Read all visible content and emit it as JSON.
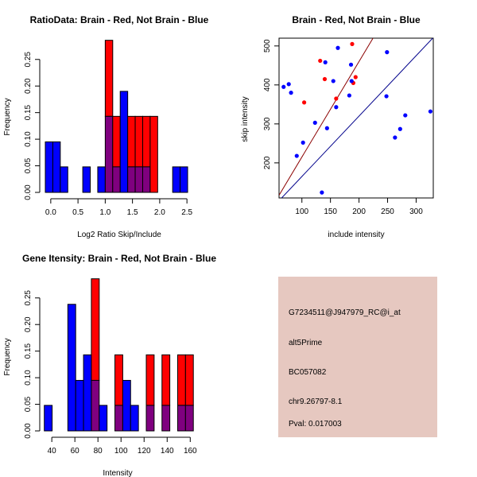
{
  "colors": {
    "red": "#ff0000",
    "blue": "#0000ff",
    "overlap": "#7f007f",
    "panel_bg": "#e6c8c0",
    "pval": "#aa0000",
    "dark_red": "#8b0000",
    "dark_blue": "#00008b"
  },
  "chart_data": [
    {
      "type": "bar",
      "subtype": "histogram-overlay",
      "title": "RatioData: Brain - Red, Not Brain - Blue",
      "xlabel": "Log2 Ratio Skip/Include",
      "ylabel": "Frequency",
      "xlim": [
        -0.1,
        2.6
      ],
      "ylim": [
        0,
        0.29
      ],
      "xticks": [
        0.0,
        0.5,
        1.0,
        1.5,
        2.0,
        2.5
      ],
      "xtick_labels": [
        "0.0",
        "0.5",
        "1.0",
        "1.5",
        "2.0",
        "2.5"
      ],
      "yticks": [
        0.0,
        0.05,
        0.1,
        0.15,
        0.2,
        0.25
      ],
      "ytick_labels": [
        "0.00",
        "0.05",
        "0.10",
        "0.15",
        "0.20",
        "0.25"
      ],
      "bin_start": -0.1,
      "bin_width": 0.1375,
      "series": [
        {
          "name": "Not Brain",
          "color": "blue",
          "values": [
            0.095,
            0.095,
            0.048,
            0,
            0,
            0.048,
            0,
            0.048,
            0.143,
            0.048,
            0.19,
            0.048,
            0.048,
            0.048,
            0,
            0,
            0,
            0.048,
            0.048
          ]
        },
        {
          "name": "Brain",
          "color": "red",
          "values": [
            0,
            0,
            0,
            0,
            0,
            0,
            0,
            0,
            0.286,
            0.143,
            0,
            0.143,
            0.143,
            0.143,
            0.143,
            0,
            0,
            0,
            0
          ]
        }
      ]
    },
    {
      "type": "scatter",
      "title": "Brain - Red, Not Brain - Blue",
      "xlabel": "include intensity",
      "ylabel": "skip intensity",
      "xlim": [
        60,
        330
      ],
      "ylim": [
        110,
        520
      ],
      "xticks": [
        100,
        150,
        200,
        250,
        300
      ],
      "yticks": [
        200,
        300,
        400,
        500
      ],
      "series": [
        {
          "name": "Brain",
          "color": "red",
          "points": [
            [
              104,
              355
            ],
            [
              132,
              462
            ],
            [
              140,
              415
            ],
            [
              160,
              365
            ],
            [
              188,
              505
            ],
            [
              190,
              405
            ],
            [
              194,
              420
            ]
          ]
        },
        {
          "name": "Not Brain",
          "color": "blue",
          "points": [
            [
              68,
              395
            ],
            [
              77,
              402
            ],
            [
              81,
              380
            ],
            [
              91,
              218
            ],
            [
              102,
              252
            ],
            [
              123,
              303
            ],
            [
              135,
              124
            ],
            [
              141,
              458
            ],
            [
              144,
              289
            ],
            [
              155,
              410
            ],
            [
              160,
              343
            ],
            [
              163,
              495
            ],
            [
              183,
              373
            ],
            [
              186,
              452
            ],
            [
              187,
              410
            ],
            [
              248,
              371
            ],
            [
              249,
              484
            ],
            [
              263,
              265
            ],
            [
              272,
              287
            ],
            [
              281,
              322
            ],
            [
              325,
              332
            ]
          ]
        }
      ],
      "lines": [
        {
          "name": "red-fit",
          "color": "dark_red",
          "slope": 2.45,
          "intercept": -30
        },
        {
          "name": "identity",
          "color": "dark_blue",
          "slope": 1.55,
          "intercept": 10
        }
      ]
    },
    {
      "type": "bar",
      "subtype": "histogram-overlay",
      "title": "Gene Itensity: Brain - Red, Not Brain - Blue",
      "xlabel": "Intensity",
      "ylabel": "Frequency",
      "xlim": [
        33,
        166
      ],
      "ylim": [
        0,
        0.29
      ],
      "xticks": [
        40,
        60,
        80,
        100,
        120,
        140,
        160
      ],
      "yticks": [
        0.0,
        0.05,
        0.1,
        0.15,
        0.2,
        0.25
      ],
      "ytick_labels": [
        "0.00",
        "0.05",
        "0.10",
        "0.15",
        "0.20",
        "0.25"
      ],
      "bin_start": 33.5,
      "bin_width": 6.8,
      "series": [
        {
          "name": "Not Brain",
          "color": "blue",
          "values": [
            0.048,
            0,
            0,
            0.238,
            0.095,
            0.143,
            0.095,
            0.048,
            0,
            0.048,
            0.095,
            0.048,
            0,
            0.048,
            0,
            0.048,
            0,
            0.048,
            0.048
          ]
        },
        {
          "name": "Brain",
          "color": "red",
          "values": [
            0,
            0,
            0,
            0,
            0,
            0,
            0.286,
            0,
            0,
            0.143,
            0,
            0,
            0,
            0.143,
            0,
            0.143,
            0,
            0.143,
            0.143
          ]
        }
      ]
    }
  ],
  "info_panel": {
    "probe_id": "G7234511@J947979_RC@i_at",
    "event_type": "alt5Prime",
    "accession": "BC057082",
    "location": "chr9.26797-8.1",
    "pval_label": "Pval: 0.017003"
  }
}
